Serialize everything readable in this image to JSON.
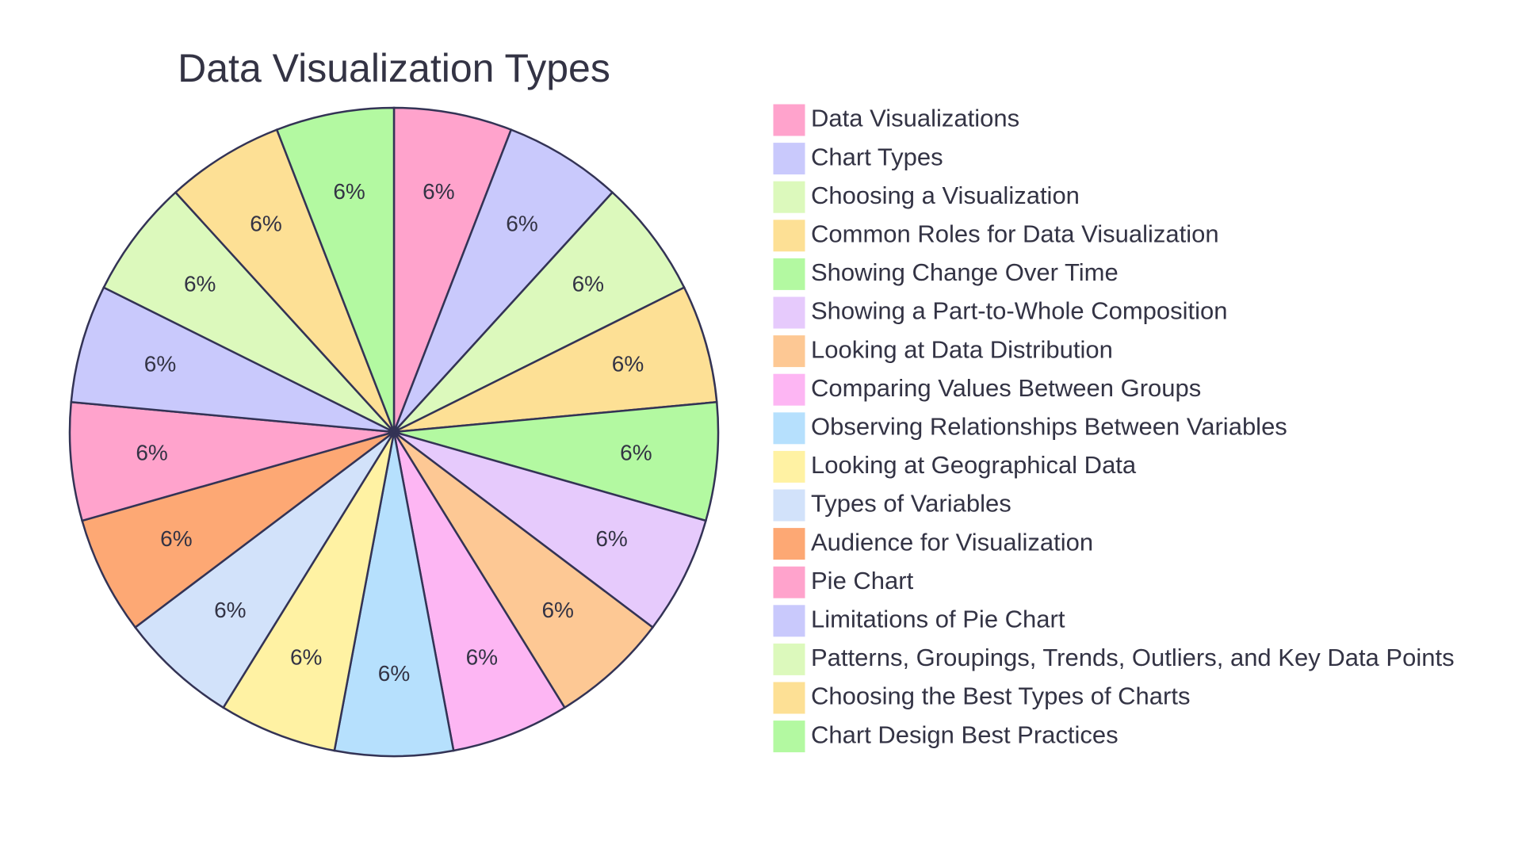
{
  "chart_data": {
    "type": "pie",
    "title": "Data Visualization Types",
    "slices": [
      {
        "label": "Data Visualizations",
        "value": 6,
        "display": "6%",
        "color": "#ffa3cc"
      },
      {
        "label": "Chart Types",
        "value": 6,
        "display": "6%",
        "color": "#c9c9fc"
      },
      {
        "label": "Choosing a Visualization",
        "value": 6,
        "display": "6%",
        "color": "#dcf9bc"
      },
      {
        "label": "Common Roles for Data Visualization",
        "value": 6,
        "display": "6%",
        "color": "#fde095"
      },
      {
        "label": "Showing Change Over Time",
        "value": 6,
        "display": "6%",
        "color": "#b3f9a1"
      },
      {
        "label": "Showing a Part-to-Whole Composition",
        "value": 6,
        "display": "6%",
        "color": "#e6cafc"
      },
      {
        "label": "Looking at Data Distribution",
        "value": 6,
        "display": "6%",
        "color": "#fdc894"
      },
      {
        "label": "Comparing Values Between Groups",
        "value": 6,
        "display": "6%",
        "color": "#fdb6f3"
      },
      {
        "label": "Observing Relationships Between Variables",
        "value": 6,
        "display": "6%",
        "color": "#b6e0fd"
      },
      {
        "label": "Looking at Geographical Data",
        "value": 6,
        "display": "6%",
        "color": "#fff2a3"
      },
      {
        "label": "Types of Variables",
        "value": 6,
        "display": "6%",
        "color": "#d2e2fa"
      },
      {
        "label": "Audience for Visualization",
        "value": 6,
        "display": "6%",
        "color": "#fda874"
      },
      {
        "label": "Pie Chart",
        "value": 6,
        "display": "6%",
        "color": "#ffa3cc"
      },
      {
        "label": "Limitations of Pie Chart",
        "value": 6,
        "display": "6%",
        "color": "#c9c9fc"
      },
      {
        "label": "Patterns, Groupings, Trends, Outliers, and Key Data Points",
        "value": 6,
        "display": "6%",
        "color": "#dcf9bc"
      },
      {
        "label": "Choosing the Best Types of Charts",
        "value": 6,
        "display": "6%",
        "color": "#fde095"
      },
      {
        "label": "Chart Design Best Practices",
        "value": 6,
        "display": "6%",
        "color": "#b3f9a1"
      }
    ],
    "legend_position": "right"
  }
}
